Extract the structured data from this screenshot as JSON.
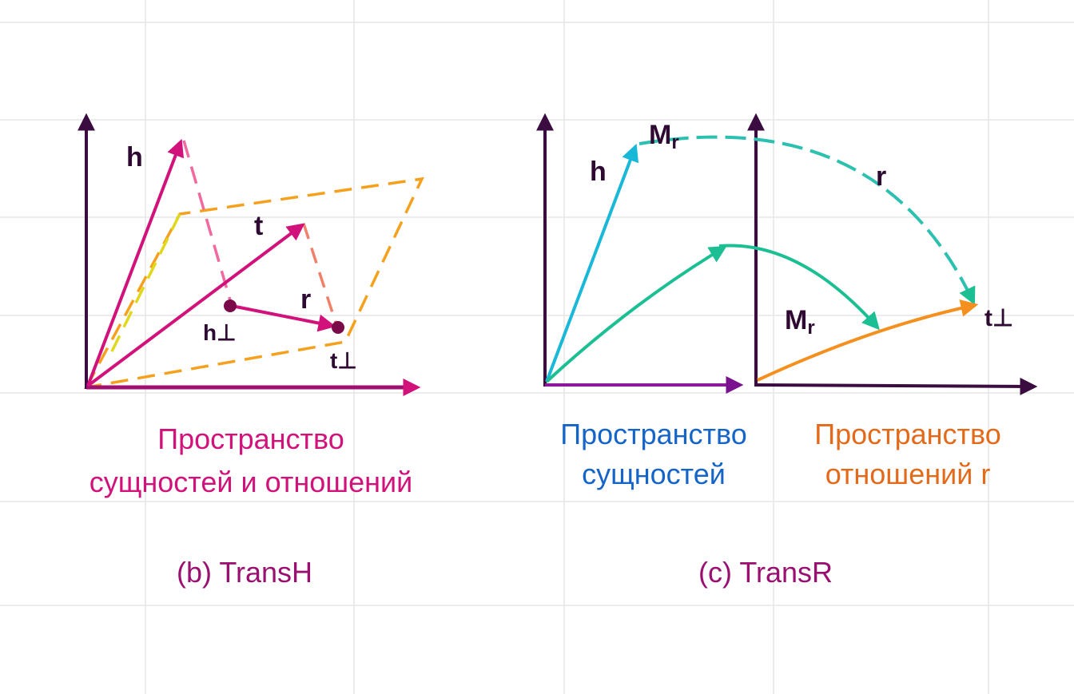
{
  "left": {
    "labels": {
      "h": "h",
      "t": "t",
      "r": "r",
      "h_perp": "h⊥",
      "t_perp": "t⊥"
    },
    "space_label": [
      "Пространство",
      "сущностей и отношений"
    ],
    "caption": "(b) TransH"
  },
  "right": {
    "labels": {
      "h": "h",
      "r": "r",
      "t_perp": "t⊥",
      "m_top": {
        "main": "M",
        "sub": "r"
      },
      "m_mid": {
        "main": "M",
        "sub": "r"
      }
    },
    "entity_space_label": [
      "Пространство",
      "сущностей"
    ],
    "relation_space_label": [
      "Пространство",
      "отношений r"
    ],
    "caption": "(c) TransR"
  }
}
